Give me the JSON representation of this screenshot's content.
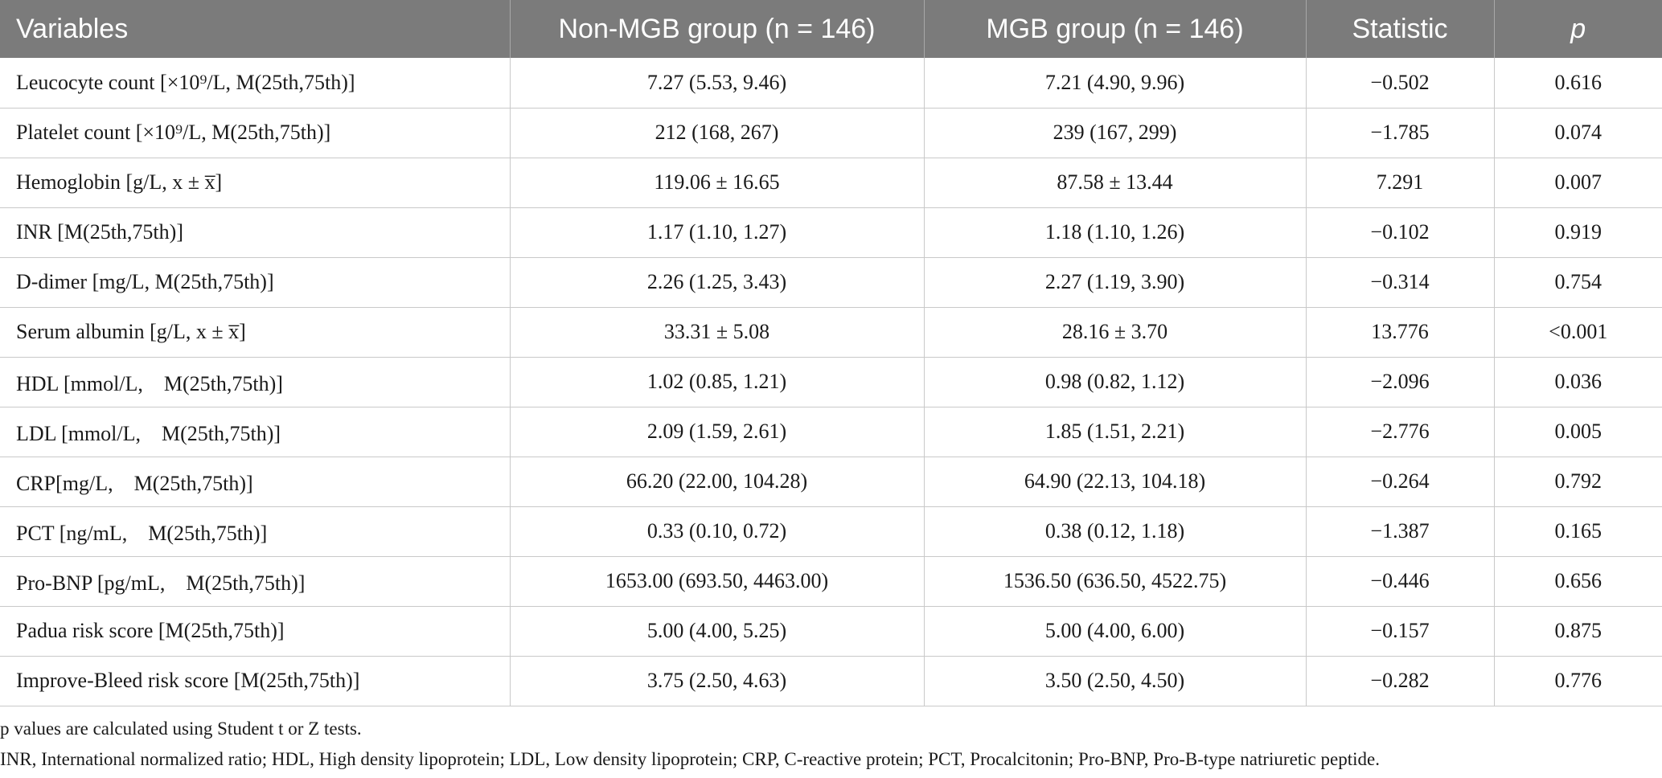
{
  "table": {
    "headers": [
      "Variables",
      "Non-MGB group (n = 146)",
      "MGB group (n = 146)",
      "Statistic",
      "p"
    ],
    "rows": [
      [
        "Leucocyte count [×10⁹/L, M(25th,75th)]",
        "7.27 (5.53, 9.46)",
        "7.21 (4.90, 9.96)",
        "−0.502",
        "0.616"
      ],
      [
        "Platelet count [×10⁹/L, M(25th,75th)]",
        "212 (168, 267)",
        "239 (167, 299)",
        "−1.785",
        "0.074"
      ],
      [
        "Hemoglobin [g/L, x ± x̅]",
        "119.06 ± 16.65",
        "87.58 ± 13.44",
        "7.291",
        "0.007"
      ],
      [
        "INR [M(25th,75th)]",
        "1.17 (1.10, 1.27)",
        "1.18 (1.10, 1.26)",
        "−0.102",
        "0.919"
      ],
      [
        "D-dimer [mg/L, M(25th,75th)]",
        "2.26 (1.25, 3.43)",
        "2.27 (1.19, 3.90)",
        "−0.314",
        "0.754"
      ],
      [
        "Serum albumin [g/L, x ± x̅]",
        "33.31 ± 5.08",
        "28.16 ± 3.70",
        "13.776",
        "<0.001"
      ],
      [
        "HDL [mmol/L,　M(25th,75th)]",
        "1.02 (0.85, 1.21)",
        "0.98 (0.82, 1.12)",
        "−2.096",
        "0.036"
      ],
      [
        "LDL [mmol/L,　M(25th,75th)]",
        "2.09 (1.59, 2.61)",
        "1.85 (1.51, 2.21)",
        "−2.776",
        "0.005"
      ],
      [
        "CRP[mg/L,　M(25th,75th)]",
        "66.20 (22.00, 104.28)",
        "64.90 (22.13, 104.18)",
        "−0.264",
        "0.792"
      ],
      [
        "PCT [ng/mL,　M(25th,75th)]",
        "0.33 (0.10, 0.72)",
        "0.38 (0.12, 1.18)",
        "−1.387",
        "0.165"
      ],
      [
        "Pro-BNP [pg/mL,　M(25th,75th)]",
        "1653.00 (693.50, 4463.00)",
        "1536.50 (636.50, 4522.75)",
        "−0.446",
        "0.656"
      ],
      [
        "Padua risk score [M(25th,75th)]",
        "5.00 (4.00, 5.25)",
        "5.00 (4.00, 6.00)",
        "−0.157",
        "0.875"
      ],
      [
        "Improve-Bleed risk score [M(25th,75th)]",
        "3.75 (2.50, 4.63)",
        "3.50 (2.50, 4.50)",
        "−0.282",
        "0.776"
      ]
    ]
  },
  "footnotes": [
    "p values are calculated using Student t or Z tests.",
    "INR, International normalized ratio; HDL, High density lipoprotein; LDL, Low density lipoprotein; CRP, C-reactive protein; PCT, Procalcitonin; Pro-BNP, Pro-B-type natriuretic peptide."
  ],
  "colors": {
    "header_bg": "#7b7b7b",
    "header_text": "#ffffff",
    "grid": "#c9c9c9"
  }
}
